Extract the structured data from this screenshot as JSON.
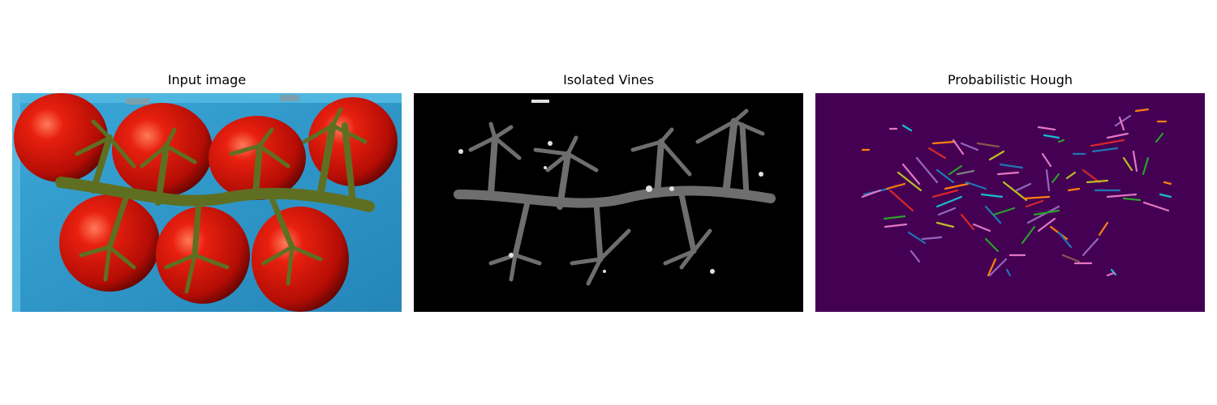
{
  "figure": {
    "panels": [
      {
        "title": "Input image",
        "content": "tomato-vine-photo"
      },
      {
        "title": "Isolated Vines",
        "content": "grayscale-vine-mask"
      },
      {
        "title": "Probabilistic Hough",
        "content": "hough-line-segments"
      }
    ],
    "colors": {
      "crate_blue": "#2f9fd0",
      "tomato_red": "#d8160c",
      "vine_green": "#5f6f22",
      "mask_background": "#000000",
      "hough_background": "#440154",
      "segment_palette": [
        "#1f77b4",
        "#ff7f0e",
        "#2ca02c",
        "#d62728",
        "#9467bd",
        "#8c564b",
        "#e377c2",
        "#7f7f7f",
        "#bcbd22",
        "#17becf"
      ]
    }
  }
}
